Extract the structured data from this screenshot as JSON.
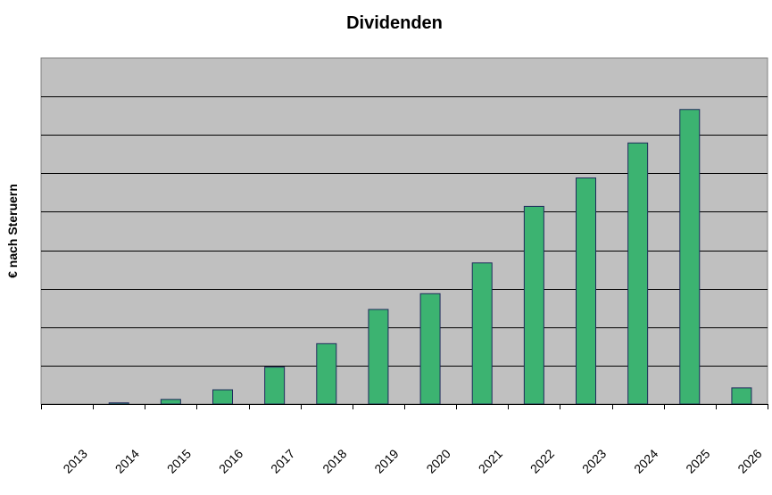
{
  "chart_data": {
    "type": "bar",
    "title": "Dividenden",
    "xlabel": "",
    "ylabel": "€ nach Steruern",
    "categories": [
      "2013",
      "2014",
      "2015",
      "2016",
      "2017",
      "2018",
      "2019",
      "2020",
      "2021",
      "2022",
      "2023",
      "2024",
      "2025",
      "2026"
    ],
    "values": [
      0,
      0.03,
      0.12,
      0.37,
      0.96,
      1.57,
      2.46,
      2.87,
      3.67,
      5.14,
      5.88,
      6.79,
      7.66,
      0.42
    ],
    "ylim": [
      0,
      9
    ],
    "grid": true,
    "y_tick_labels_shown": false,
    "legend": "none",
    "colors": {
      "bar_fill": "#3cb371",
      "bar_stroke": "#1f2a5c",
      "plot_background": "#c0c0c0",
      "gridline": "#000000"
    }
  }
}
